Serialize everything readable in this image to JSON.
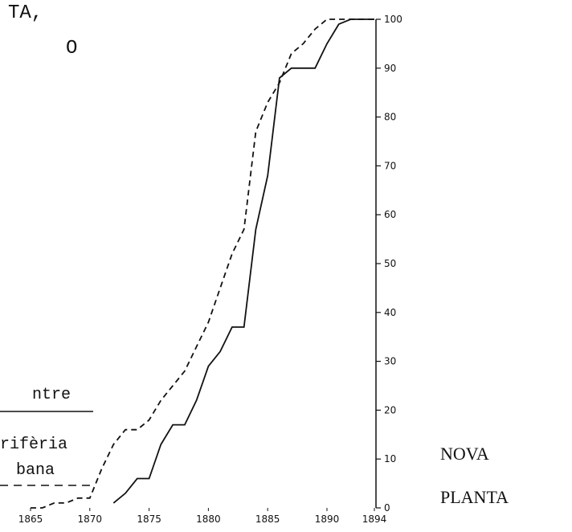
{
  "chart_data": {
    "type": "line",
    "texts": [
      "TA,",
      "O"
    ],
    "side_labels": [
      "NOVA",
      "PLANTA"
    ],
    "x": [
      1865,
      1866,
      1867,
      1868,
      1869,
      1870,
      1871,
      1872,
      1873,
      1874,
      1875,
      1876,
      1877,
      1878,
      1879,
      1880,
      1881,
      1882,
      1883,
      1884,
      1885,
      1886,
      1887,
      1888,
      1889,
      1890,
      1891,
      1892,
      1893,
      1894
    ],
    "series": [
      {
        "name": "ntre",
        "color": "#111111",
        "dash": false,
        "values": [
          null,
          null,
          null,
          null,
          null,
          null,
          null,
          1,
          3,
          6,
          6,
          13,
          17,
          17,
          22,
          29,
          32,
          37,
          37,
          57,
          68,
          88,
          90,
          90,
          90,
          95,
          99,
          100,
          100,
          100
        ]
      },
      {
        "name": "rifèria bana",
        "color": "#111111",
        "dash": true,
        "values": [
          0,
          0,
          1,
          1,
          2,
          2,
          8,
          13,
          16,
          16,
          18,
          22,
          25,
          28,
          33,
          38,
          45,
          52,
          57,
          77,
          83,
          87,
          93,
          95,
          98,
          100,
          100,
          100,
          100,
          100
        ]
      }
    ],
    "xlim": [
      1865,
      1894
    ],
    "xticks": [
      1865,
      1870,
      1875,
      1880,
      1885,
      1890,
      1894
    ],
    "ylim": [
      0,
      100
    ],
    "yticks": [
      0,
      10,
      20,
      30,
      40,
      50,
      60,
      70,
      80,
      90,
      100
    ]
  }
}
